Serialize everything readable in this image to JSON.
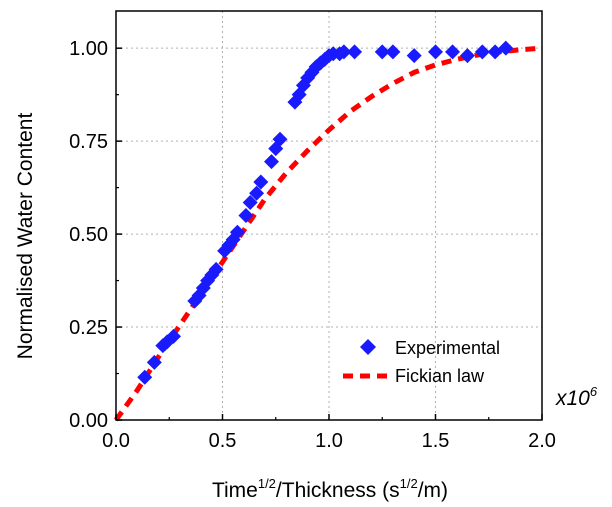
{
  "chart_data": {
    "type": "scatter",
    "xlabel_main": "Time",
    "xlabel_sup1": "1/2",
    "xlabel_mid": "/Thickness (s",
    "xlabel_sup2": "1/2",
    "xlabel_end": "/m)",
    "ylabel": "Normalised Water Content",
    "x_multiplier_base": "x10",
    "x_multiplier_exp": "6",
    "xlim": [
      0,
      2.0
    ],
    "ylim": [
      0,
      1.1
    ],
    "x_ticks": [
      0.0,
      0.5,
      1.0,
      1.5,
      2.0
    ],
    "x_tick_labels": [
      "0.0",
      "0.5",
      "1.0",
      "1.5",
      "2.0"
    ],
    "y_ticks": [
      0.0,
      0.25,
      0.5,
      0.75,
      1.0
    ],
    "y_tick_labels": [
      "0.00",
      "0.25",
      "0.50",
      "0.75",
      "1.00"
    ],
    "grid": true,
    "legend_position": "bottom-right",
    "series": [
      {
        "name": "Experimental",
        "kind": "scatter",
        "marker": "diamond",
        "color": "#1a1aff",
        "x": [
          0.135,
          0.18,
          0.22,
          0.24,
          0.27,
          0.37,
          0.39,
          0.41,
          0.43,
          0.45,
          0.47,
          0.51,
          0.53,
          0.55,
          0.57,
          0.61,
          0.63,
          0.66,
          0.68,
          0.73,
          0.75,
          0.77,
          0.84,
          0.86,
          0.88,
          0.9,
          0.92,
          0.94,
          0.96,
          0.98,
          1.0,
          1.02,
          1.05,
          1.07,
          1.12,
          1.25,
          1.3,
          1.4,
          1.5,
          1.58,
          1.65,
          1.72,
          1.78,
          1.83
        ],
        "y": [
          0.115,
          0.155,
          0.2,
          0.21,
          0.225,
          0.32,
          0.335,
          0.355,
          0.375,
          0.39,
          0.405,
          0.455,
          0.47,
          0.485,
          0.505,
          0.55,
          0.585,
          0.61,
          0.64,
          0.695,
          0.73,
          0.755,
          0.855,
          0.875,
          0.9,
          0.92,
          0.935,
          0.95,
          0.96,
          0.97,
          0.98,
          0.985,
          0.985,
          0.99,
          0.99,
          0.99,
          0.99,
          0.98,
          0.99,
          0.99,
          0.98,
          0.99,
          0.99,
          1.0
        ]
      },
      {
        "name": "Fickian law",
        "kind": "line",
        "style": "dashed",
        "color": "#ff0000",
        "x": [
          0.0,
          0.1,
          0.2,
          0.3,
          0.4,
          0.5,
          0.6,
          0.7,
          0.8,
          0.9,
          1.0,
          1.1,
          1.2,
          1.3,
          1.4,
          1.5,
          1.6,
          1.7,
          1.8,
          1.9,
          2.0
        ],
        "y": [
          0.0,
          0.08,
          0.17,
          0.255,
          0.34,
          0.425,
          0.51,
          0.595,
          0.665,
          0.725,
          0.78,
          0.83,
          0.87,
          0.905,
          0.935,
          0.955,
          0.97,
          0.982,
          0.99,
          0.996,
          1.0
        ]
      }
    ]
  }
}
